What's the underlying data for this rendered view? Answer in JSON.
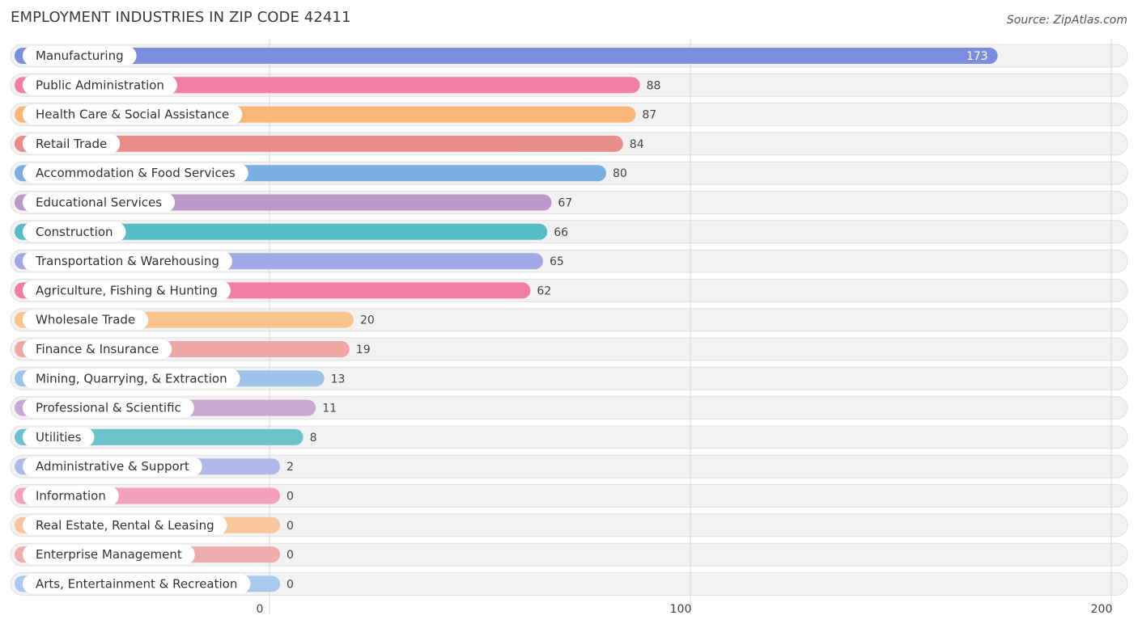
{
  "title": "EMPLOYMENT INDUSTRIES IN ZIP CODE 42411",
  "source": "Source: ZipAtlas.com",
  "chart_data": {
    "type": "bar",
    "orientation": "horizontal",
    "categories": [
      "Manufacturing",
      "Public Administration",
      "Health Care & Social Assistance",
      "Retail Trade",
      "Accommodation & Food Services",
      "Educational Services",
      "Construction",
      "Transportation & Warehousing",
      "Agriculture, Fishing & Hunting",
      "Wholesale Trade",
      "Finance & Insurance",
      "Mining, Quarrying, & Extraction",
      "Professional & Scientific",
      "Utilities",
      "Administrative & Support",
      "Information",
      "Real Estate, Rental & Leasing",
      "Enterprise Management",
      "Arts, Entertainment & Recreation"
    ],
    "values": [
      173,
      88,
      87,
      84,
      80,
      67,
      66,
      65,
      62,
      20,
      19,
      13,
      11,
      8,
      2,
      0,
      0,
      0,
      0
    ],
    "colors": [
      "#7b8ddc",
      "#f27fa3",
      "#f9b677",
      "#e88d8a",
      "#7aaee3",
      "#bb98c8",
      "#55bbc5",
      "#a3a9e6",
      "#f27fa3",
      "#f9c48e",
      "#eea7a5",
      "#9fc4ea",
      "#c7a8d2",
      "#6cc3cc",
      "#b1b9ec",
      "#f5a0bd",
      "#f9c59b",
      "#efaeae",
      "#a9c8ee"
    ],
    "xticks": [
      0,
      100,
      200
    ],
    "xlim": [
      0,
      200
    ],
    "grid": true,
    "xlabel": "",
    "ylabel": ""
  }
}
